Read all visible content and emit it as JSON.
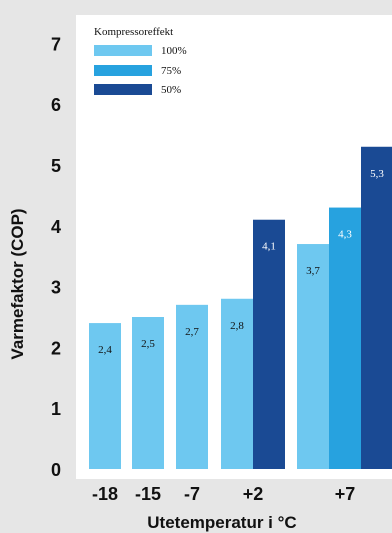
{
  "chart_data": {
    "type": "bar",
    "xlabel": "Utetemperatur i °C",
    "ylabel": "Varmefaktor (COP)",
    "ylim": [
      0,
      7.6
    ],
    "yticks": [
      0,
      1,
      2,
      3,
      4,
      5,
      6,
      7
    ],
    "grid": false,
    "legend_position": "top-left",
    "legend_title": "Kompressoreffekt",
    "categories": [
      "-18",
      "-15",
      "-7",
      "+2",
      "+7"
    ],
    "series": [
      {
        "name": "100%",
        "color": "#6ec8f0",
        "values": [
          2.4,
          2.5,
          2.7,
          2.8,
          3.7
        ]
      },
      {
        "name": "75%",
        "color": "#27a2df",
        "values": [
          null,
          null,
          null,
          null,
          4.3
        ]
      },
      {
        "name": "50%",
        "color": "#1a4a94",
        "values": [
          null,
          null,
          null,
          4.1,
          5.3
        ]
      }
    ],
    "data_labels": [
      [
        "2,4",
        "2,5",
        "2,7",
        "2,8",
        "3,7"
      ],
      [
        null,
        null,
        null,
        null,
        "4,3"
      ],
      [
        null,
        null,
        null,
        "4,1",
        "5,3"
      ]
    ]
  }
}
